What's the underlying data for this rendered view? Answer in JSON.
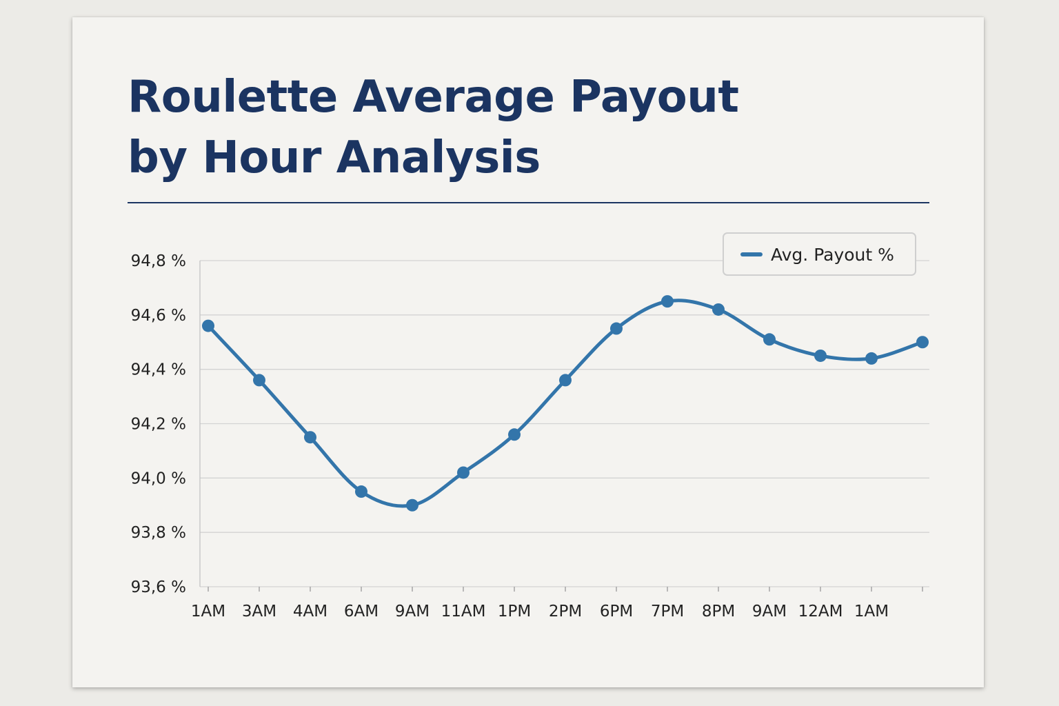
{
  "chart_data": {
    "type": "line",
    "title_lines": [
      "Roulette Average Payout",
      "by Hour Analysis"
    ],
    "xlabel": "",
    "ylabel": "",
    "categories": [
      "1AM",
      "3AM",
      "4AM",
      "6AM",
      "9AM",
      "11AM",
      "1PM",
      "2PM",
      "6PM",
      "7PM",
      "8PM",
      "9AM",
      "12AM",
      "1AM",
      ""
    ],
    "series": [
      {
        "name": "Avg. Payout %",
        "color": "#3375aa",
        "values": [
          94.56,
          94.36,
          94.15,
          93.95,
          93.9,
          94.02,
          94.16,
          94.36,
          94.55,
          94.65,
          94.62,
          94.51,
          94.45,
          94.44,
          94.5
        ]
      }
    ],
    "ylim": [
      93.6,
      94.8
    ],
    "yticks": [
      93.6,
      93.8,
      94.0,
      94.2,
      94.4,
      94.6,
      94.8
    ],
    "ytick_labels": [
      "93,6 %",
      "93,8 %",
      "94,0 %",
      "94,2 %",
      "94,4 %",
      "94,6 %",
      "94,8 %"
    ],
    "grid": true,
    "legend_position": "top-right",
    "legend_entries": [
      "Avg. Payout %"
    ]
  }
}
